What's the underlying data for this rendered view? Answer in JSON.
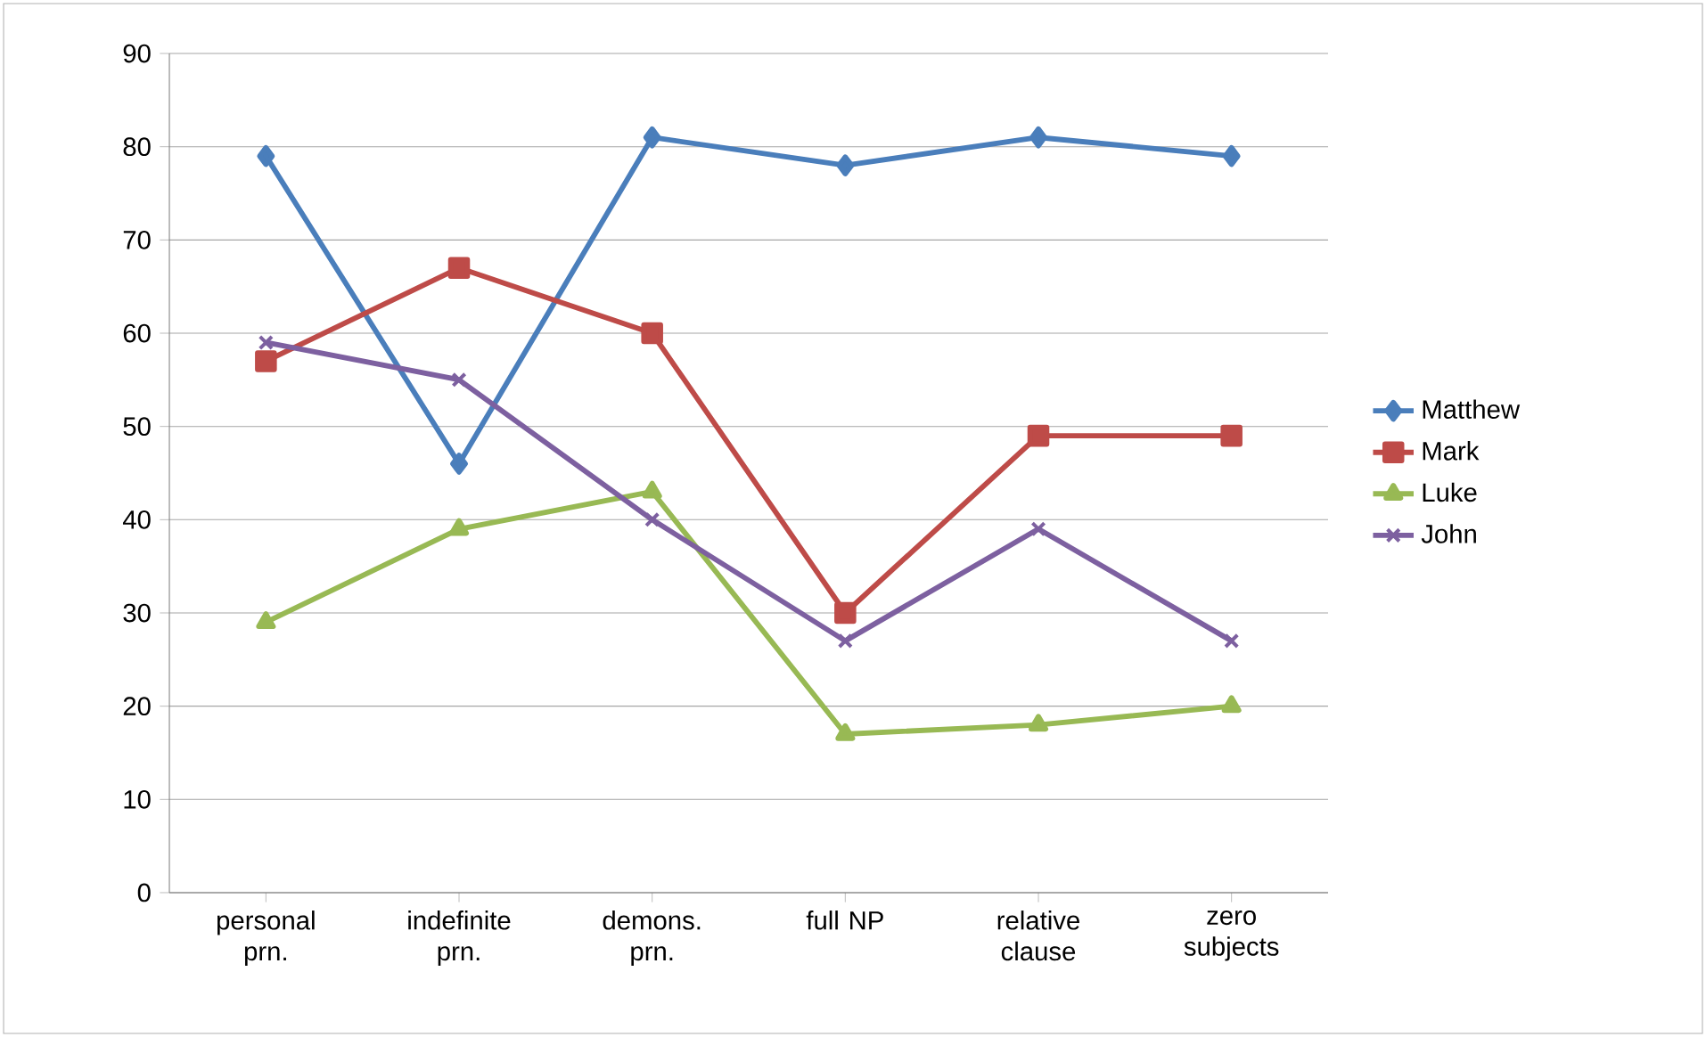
{
  "chart_data": {
    "type": "line",
    "categories": [
      "personal prn.",
      "indefinite prn.",
      "demons. prn.",
      "full NP",
      "relative clause",
      "zero subjects"
    ],
    "series": [
      {
        "name": "Matthew",
        "color": "#4a7ebb",
        "marker": "diamond",
        "values": [
          79,
          46,
          81,
          78,
          81,
          79
        ]
      },
      {
        "name": "Mark",
        "color": "#be4b48",
        "marker": "square",
        "values": [
          57,
          67,
          60,
          30,
          49,
          49
        ]
      },
      {
        "name": "Luke",
        "color": "#98b954",
        "marker": "triangle",
        "values": [
          29,
          39,
          43,
          17,
          18,
          20
        ]
      },
      {
        "name": "John",
        "color": "#7d60a0",
        "marker": "cross",
        "values": [
          59,
          55,
          40,
          27,
          39,
          27
        ]
      }
    ],
    "ylim": [
      0,
      90
    ],
    "yticks": [
      0,
      10,
      20,
      30,
      40,
      50,
      60,
      70,
      80,
      90
    ],
    "grid": "y",
    "legend": "right",
    "line_style": "solid"
  }
}
